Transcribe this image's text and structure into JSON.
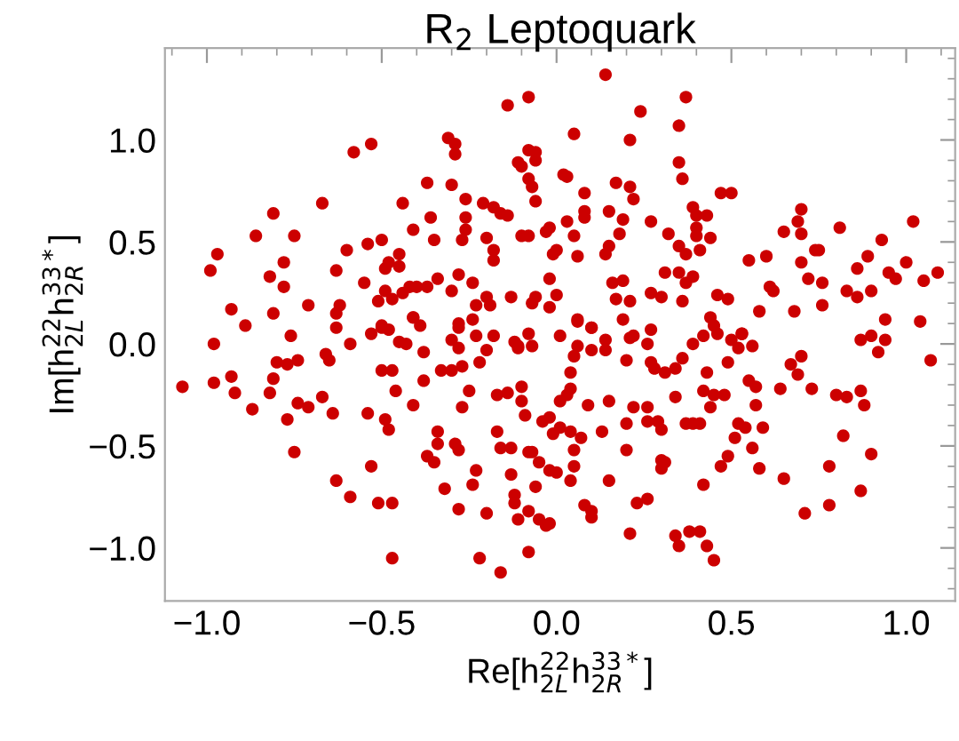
{
  "chart_data": {
    "type": "scatter",
    "title": "R$_{2}$ Leptoquark",
    "xlabel": "Re[h$^{22}$$_{2L}$h$^{33*}$$_{2R}$]",
    "ylabel": "Im[h$^{22}$$_{2L}$h$^{33*}$$_{2R}$]",
    "xlim": [
      -1.12,
      1.14
    ],
    "ylim": [
      -1.26,
      1.45
    ],
    "xticks": [
      {
        "value": -1.0,
        "label": "−1.0"
      },
      {
        "value": -0.5,
        "label": "−0.5"
      },
      {
        "value": 0.0,
        "label": "0.0"
      },
      {
        "value": 0.5,
        "label": "0.5"
      },
      {
        "value": 1.0,
        "label": "1.0"
      }
    ],
    "yticks": [
      {
        "value": -1.0,
        "label": "−1.0"
      },
      {
        "value": -0.5,
        "label": "−0.5"
      },
      {
        "value": 0.0,
        "label": "0.0"
      },
      {
        "value": 0.5,
        "label": "0.5"
      },
      {
        "value": 1.0,
        "label": "1.0"
      }
    ],
    "grid": false,
    "legend": false,
    "marker": "circle",
    "series": [
      {
        "color": "#cc0000",
        "x": [
          -0.99,
          -0.97,
          -0.93,
          -0.89,
          -0.86,
          -0.82,
          -0.81,
          -0.78,
          -0.78,
          -0.81,
          -0.75,
          -0.71,
          -0.67,
          -0.63,
          -0.62,
          -0.63,
          -0.63,
          -0.6,
          -0.58,
          -0.53,
          -0.54,
          -0.55,
          -0.5,
          -0.49,
          -0.48,
          -0.45,
          -0.45,
          -0.49,
          -0.51,
          -0.47,
          -0.44,
          -0.42,
          -0.4,
          -0.37,
          -0.34,
          -0.41,
          -0.44,
          -0.37,
          -0.36,
          -0.35,
          -0.41,
          -0.39,
          -0.5,
          -0.31,
          -0.29,
          -0.29,
          -0.3,
          -0.3,
          -0.28,
          -0.26,
          -0.26,
          -0.26,
          -0.27,
          -0.28,
          -0.24,
          -0.24,
          -0.23,
          -0.21,
          -0.18,
          -0.16,
          -0.14,
          -0.2,
          -0.18,
          -0.18,
          -0.2,
          -0.19,
          -0.13,
          -0.14,
          -0.08,
          -0.08,
          -0.11,
          -0.1,
          -0.08,
          -0.1,
          -0.08,
          0.14,
          0.37,
          0.24,
          0.05,
          0.35,
          0.21,
          -0.06,
          -0.06,
          0.35,
          0.36,
          -0.07,
          0.02,
          0.03,
          0.17,
          0.21,
          -0.06,
          0.08,
          0.22,
          0.47,
          0.5,
          0.08,
          0.08,
          0.15,
          0.19,
          0.03,
          -0.02,
          -0.03,
          0.05,
          0.18,
          0.27,
          0.39,
          0.4,
          0.43,
          0.4,
          0.4,
          0.44,
          0.32,
          0.35,
          0.37,
          0.41,
          0.7,
          0.69,
          0.7,
          0.65,
          0.81,
          1.02,
          0.93,
          0.0,
          -0.01,
          0.15,
          0.14,
          0.06,
          0.74,
          0.75,
          0.55,
          0.6,
          0.89,
          0.86,
          1.0,
          0.95,
          0.97,
          1.09,
          1.05,
          0.7,
          0.72,
          0.76,
          0.83,
          0.86,
          0.9,
          -0.02,
          0.31,
          0.35,
          0.39,
          0.37,
          0.16,
          0.19,
          0.27,
          0.3,
          0.0,
          -0.06,
          -0.07,
          -0.02,
          0.17,
          0.21,
          0.36,
          0.46,
          0.49,
          0.61,
          0.62,
          0.58,
          0.68,
          0.76,
          0.94,
          1.04,
          0.06,
          0.1,
          0.19,
          0.27,
          0.44,
          0.45,
          0.53,
          -1.07,
          -0.98,
          -0.98,
          -0.93,
          -0.92,
          -0.87,
          -0.82,
          -0.81,
          -0.8,
          -0.77,
          -0.76,
          -0.74,
          -0.77,
          -0.74,
          -0.71,
          -0.75,
          -0.66,
          -0.65,
          -0.67,
          -0.64,
          -0.63,
          -0.59,
          -0.59,
          -0.54,
          -0.53,
          -0.51,
          -0.47,
          -0.47,
          -0.53,
          -0.5,
          -0.48,
          -0.5,
          -0.47,
          -0.46,
          -0.49,
          -0.48,
          -0.45,
          -0.43,
          -0.41,
          -0.38,
          -0.38,
          -0.41,
          -0.37,
          -0.35,
          -0.34,
          -0.34,
          -0.32,
          -0.33,
          -0.3,
          -0.3,
          -0.28,
          -0.28,
          -0.27,
          -0.25,
          -0.27,
          -0.29,
          -0.28,
          -0.28,
          -0.24,
          -0.23,
          -0.22,
          -0.23,
          -0.2,
          -0.22,
          -0.18,
          -0.17,
          -0.17,
          -0.2,
          -0.16,
          -0.13,
          -0.13,
          -0.12,
          -0.12,
          -0.11,
          -0.16,
          -0.14,
          -0.1,
          -0.09,
          -0.12,
          -0.11,
          -0.08,
          -0.08,
          -0.08,
          -0.11,
          -0.07,
          -0.1,
          0.01,
          0.06,
          0.1,
          0.05,
          0.06,
          0.1,
          0.14,
          0.14,
          0.2,
          0.21,
          0.22,
          0.26,
          0.27,
          0.28,
          0.31,
          0.34,
          0.36,
          0.39,
          0.42,
          0.46,
          0.5,
          0.53,
          0.52,
          0.56,
          0.49,
          0.43,
          0.55,
          0.57,
          0.67,
          0.7,
          0.69,
          0.64,
          0.73,
          0.8,
          0.83,
          0.87,
          0.9,
          0.94,
          0.92,
          1.07,
          0.87,
          0.88,
          0.82,
          0.9,
          0.78,
          0.65,
          0.87,
          0.78,
          0.71,
          0.57,
          0.52,
          0.54,
          0.59,
          0.51,
          0.56,
          0.58,
          0.49,
          0.47,
          0.42,
          0.48,
          0.45,
          0.44,
          0.42,
          0.39,
          0.37,
          0.41,
          0.34,
          0.3,
          0.26,
          0.29,
          0.22,
          0.26,
          0.2,
          0.2,
          0.3,
          0.31,
          0.3,
          0.13,
          0.15,
          0.09,
          0.07,
          0.05,
          0.05,
          0.04,
          0.01,
          0.03,
          0.04,
          0.04,
          0.04,
          0.01,
          -0.01,
          -0.02,
          -0.04,
          -0.02,
          0.0,
          -0.05,
          -0.07,
          -0.06,
          0.08,
          0.1,
          0.1,
          0.15,
          0.23,
          0.26,
          0.21,
          0.34,
          0.35,
          0.38,
          0.41,
          0.43,
          0.45,
          -0.08,
          -0.05,
          -0.03,
          -0.02
        ],
        "values": [
          0.36,
          0.44,
          0.17,
          0.09,
          0.53,
          0.33,
          0.64,
          0.4,
          0.28,
          0.15,
          0.53,
          0.19,
          0.69,
          0.36,
          0.19,
          0.15,
          0.08,
          0.46,
          0.94,
          0.98,
          0.49,
          0.3,
          0.51,
          0.37,
          0.4,
          0.44,
          0.38,
          0.26,
          0.21,
          0.22,
          0.25,
          0.28,
          0.28,
          0.28,
          0.32,
          0.56,
          0.69,
          0.79,
          0.62,
          0.51,
          0.13,
          0.09,
          0.08,
          1.01,
          0.98,
          0.93,
          0.78,
          0.26,
          0.1,
          0.71,
          0.62,
          0.56,
          0.51,
          0.34,
          0.3,
          0.12,
          0.19,
          0.69,
          0.67,
          0.64,
          0.63,
          0.52,
          0.46,
          0.41,
          0.23,
          0.19,
          0.23,
          1.17,
          1.21,
          0.95,
          0.89,
          0.87,
          0.81,
          0.53,
          0.53,
          1.32,
          1.21,
          1.14,
          1.03,
          1.07,
          1.0,
          0.94,
          0.9,
          0.89,
          0.81,
          0.77,
          0.83,
          0.82,
          0.79,
          0.77,
          0.7,
          0.74,
          0.71,
          0.74,
          0.74,
          0.65,
          0.62,
          0.65,
          0.61,
          0.6,
          0.57,
          0.55,
          0.53,
          0.54,
          0.6,
          0.67,
          0.63,
          0.63,
          0.57,
          0.53,
          0.52,
          0.54,
          0.48,
          0.44,
          0.46,
          0.66,
          0.6,
          0.54,
          0.55,
          0.57,
          0.6,
          0.51,
          0.46,
          0.44,
          0.48,
          0.44,
          0.43,
          0.46,
          0.46,
          0.41,
          0.43,
          0.43,
          0.37,
          0.4,
          0.35,
          0.32,
          0.35,
          0.31,
          0.4,
          0.32,
          0.3,
          0.26,
          0.23,
          0.26,
          0.32,
          0.35,
          0.35,
          0.33,
          0.3,
          0.3,
          0.31,
          0.25,
          0.23,
          0.24,
          0.23,
          0.2,
          0.18,
          0.22,
          0.21,
          0.21,
          0.24,
          0.22,
          0.28,
          0.26,
          0.16,
          0.16,
          0.19,
          0.12,
          0.11,
          0.11,
          0.08,
          0.12,
          0.07,
          0.13,
          0.09,
          0.05,
          -0.21,
          0.0,
          -0.19,
          -0.16,
          -0.24,
          -0.32,
          -0.24,
          -0.17,
          -0.09,
          -0.1,
          0.04,
          -0.29,
          -0.37,
          -0.08,
          -0.31,
          -0.53,
          -0.05,
          -0.08,
          -0.26,
          -0.34,
          -0.67,
          -0.75,
          0.0,
          -0.34,
          -0.6,
          -0.78,
          -0.78,
          -1.05,
          0.05,
          0.09,
          0.07,
          -0.13,
          -0.13,
          -0.23,
          -0.37,
          -0.42,
          0.01,
          0.0,
          0.13,
          -0.04,
          -0.18,
          -0.3,
          -0.55,
          -0.58,
          -0.43,
          -0.49,
          -0.71,
          -0.13,
          -0.13,
          0.02,
          -0.02,
          0.08,
          -0.11,
          -0.23,
          -0.31,
          -0.49,
          -0.52,
          -0.81,
          -0.69,
          -0.62,
          -1.05,
          0.04,
          -0.03,
          -0.09,
          0.04,
          -0.25,
          -0.43,
          -0.83,
          -0.51,
          -0.51,
          -0.64,
          -0.74,
          -0.78,
          -0.86,
          -1.12,
          -0.24,
          -0.28,
          -0.35,
          0.01,
          -0.02,
          0.05,
          -1.02,
          -0.53,
          -0.01,
          -0.01,
          -0.21,
          0.04,
          0.12,
          0.08,
          -0.06,
          -0.01,
          -0.03,
          0.02,
          -0.03,
          -0.08,
          0.03,
          0.04,
          0.0,
          -0.09,
          -0.12,
          -0.14,
          -0.12,
          -0.07,
          0.0,
          0.04,
          0.05,
          0.02,
          0.05,
          -0.02,
          -0.01,
          -0.09,
          -0.14,
          -0.18,
          -0.21,
          -0.1,
          -0.06,
          -0.15,
          -0.22,
          -0.22,
          -0.25,
          -0.26,
          0.02,
          0.04,
          0.02,
          -0.04,
          -0.08,
          -0.23,
          -0.3,
          -0.45,
          -0.54,
          -0.6,
          -0.66,
          -0.72,
          -0.79,
          -0.83,
          -0.3,
          -0.39,
          -0.41,
          -0.41,
          -0.46,
          -0.51,
          -0.61,
          -0.55,
          -0.6,
          -0.69,
          -0.25,
          -0.25,
          -0.31,
          -0.23,
          -0.39,
          -0.39,
          -0.39,
          -0.26,
          -0.42,
          -0.38,
          -0.38,
          -0.31,
          -0.31,
          -0.39,
          -0.52,
          -0.57,
          -0.58,
          -0.61,
          -0.43,
          -0.28,
          -0.3,
          -0.46,
          -0.52,
          -0.6,
          -0.67,
          -0.28,
          -0.25,
          -0.22,
          -0.14,
          -0.43,
          -0.41,
          -0.44,
          -0.36,
          -0.38,
          -0.62,
          -0.63,
          -0.58,
          -0.53,
          -0.7,
          -0.79,
          -0.82,
          -0.85,
          -0.67,
          -0.78,
          -0.76,
          -0.93,
          -0.94,
          -0.99,
          -0.92,
          -0.92,
          -0.99,
          -1.06,
          -0.82,
          -0.86,
          -0.89,
          -0.88
        ]
      }
    ]
  }
}
